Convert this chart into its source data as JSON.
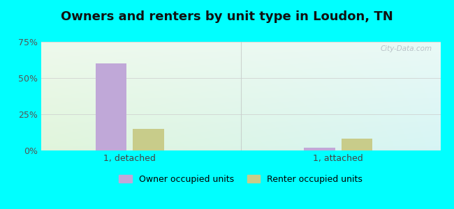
{
  "title": "Owners and renters by unit type in Loudon, TN",
  "categories": [
    "1, detached",
    "1, attached"
  ],
  "owner_values": [
    60,
    2
  ],
  "renter_values": [
    15,
    8
  ],
  "owner_color": "#c0a8d8",
  "renter_color": "#c8cc8a",
  "ylim": [
    0,
    75
  ],
  "yticks": [
    0,
    25,
    50,
    75
  ],
  "ytick_labels": [
    "0%",
    "25%",
    "50%",
    "75%"
  ],
  "bar_width": 0.07,
  "legend_owner": "Owner occupied units",
  "legend_renter": "Renter occupied units",
  "outer_bg": "#00ffff",
  "title_fontsize": 13,
  "watermark": "City-Data.com",
  "group_positions": [
    0.25,
    0.72
  ],
  "xlim": [
    0.05,
    0.95
  ]
}
